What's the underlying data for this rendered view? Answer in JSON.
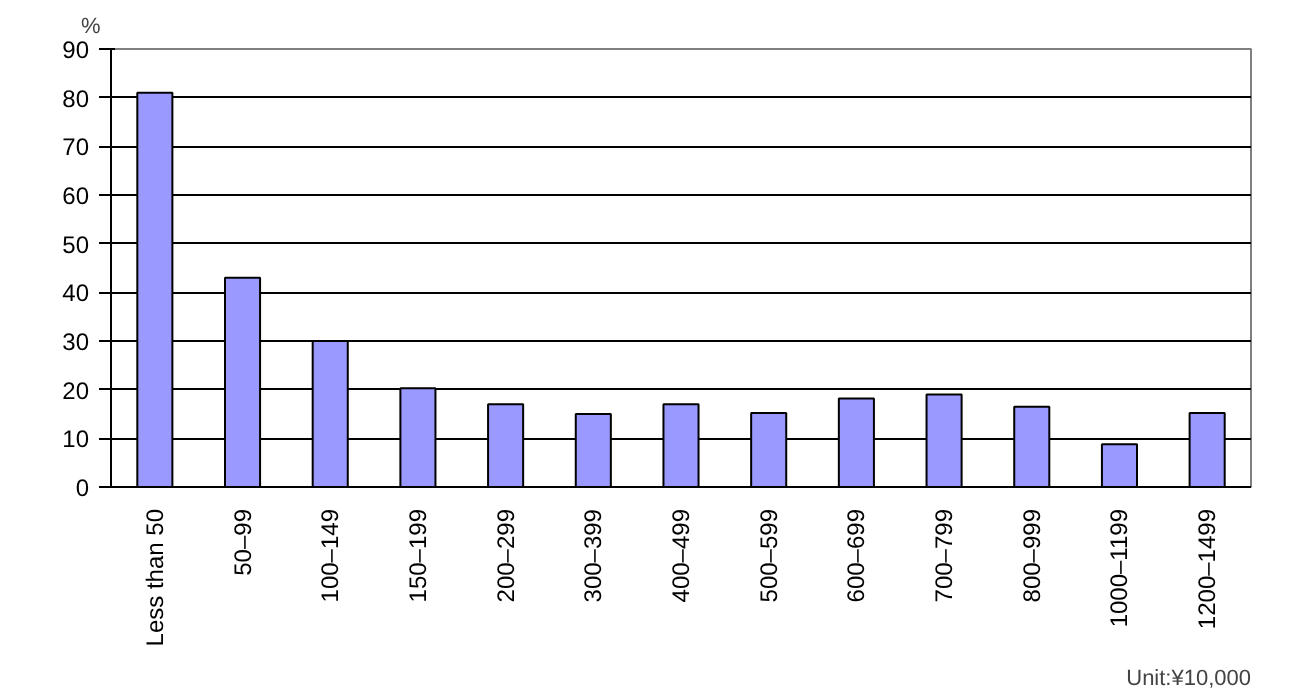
{
  "chart_data": {
    "type": "bar",
    "ylabel": "%",
    "categories": [
      "Less than 50",
      "50–99",
      "100–149",
      "150–199",
      "200–299",
      "300–399",
      "400–499",
      "500–599",
      "600–699",
      "700–799",
      "800–999",
      "1000–1199",
      "1200–1499"
    ],
    "values": [
      81,
      43,
      30,
      20.3,
      17,
      15,
      17,
      15.2,
      18.2,
      19,
      16.5,
      8.8,
      15.2
    ],
    "color": "#9999ff",
    "ylim": [
      0,
      90
    ],
    "yticks": [
      0,
      10,
      20,
      30,
      40,
      50,
      60,
      70,
      80,
      90
    ],
    "grid": "y",
    "annotations": [
      "Unit:¥10,000"
    ]
  }
}
